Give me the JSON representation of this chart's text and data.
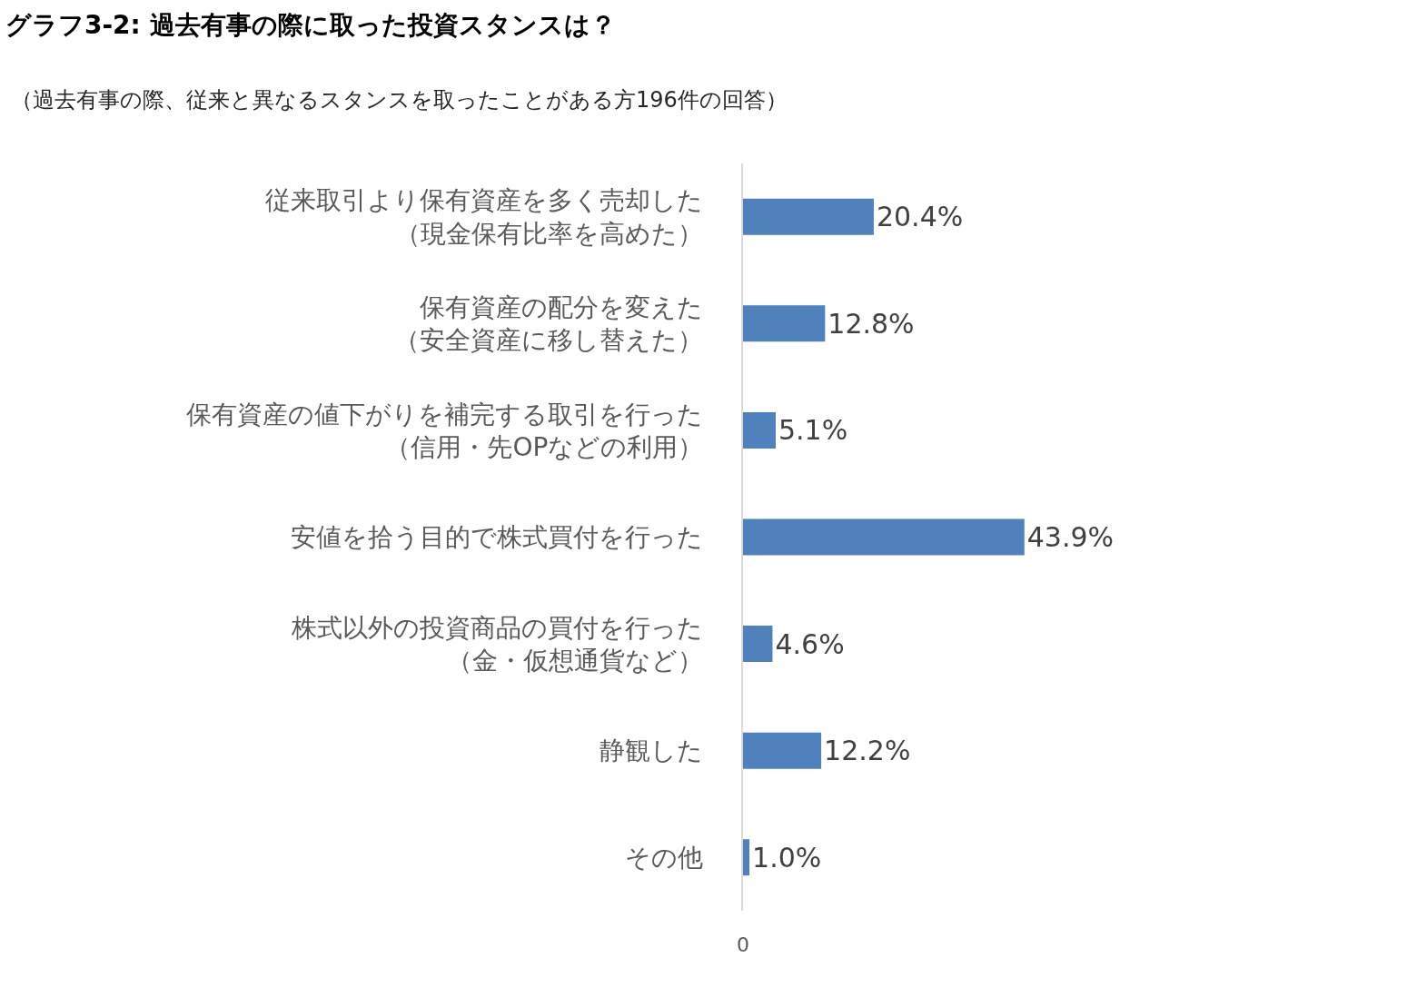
{
  "chart_data": {
    "type": "bar",
    "orientation": "horizontal",
    "title": "グラフ3-2: 過去有事の際に取った投資スタンスは？",
    "subtitle": "（過去有事の際、従来と異なるスタンスを取ったことがある方196件の回答）",
    "categories": [
      "従来取引より保有資産を多く売却した（現金保有比率を高めた）",
      "保有資産の配分を変えた（安全資産に移し替えた）",
      "保有資産の値下がりを補完する取引を行った（信用・先OPなどの利用）",
      "安値を拾う目的で株式買付を行った",
      "株式以外の投資商品の買付を行った（金・仮想通貨など）",
      "静観した",
      "その他"
    ],
    "values": [
      20.4,
      12.8,
      5.1,
      43.9,
      4.6,
      12.2,
      1.0
    ],
    "value_labels": [
      "20.4%",
      "12.8%",
      "5.1%",
      "43.9%",
      "4.6%",
      "12.2%",
      "1.0%"
    ],
    "color": "#4f81bd",
    "annotations": [
      "0"
    ]
  }
}
